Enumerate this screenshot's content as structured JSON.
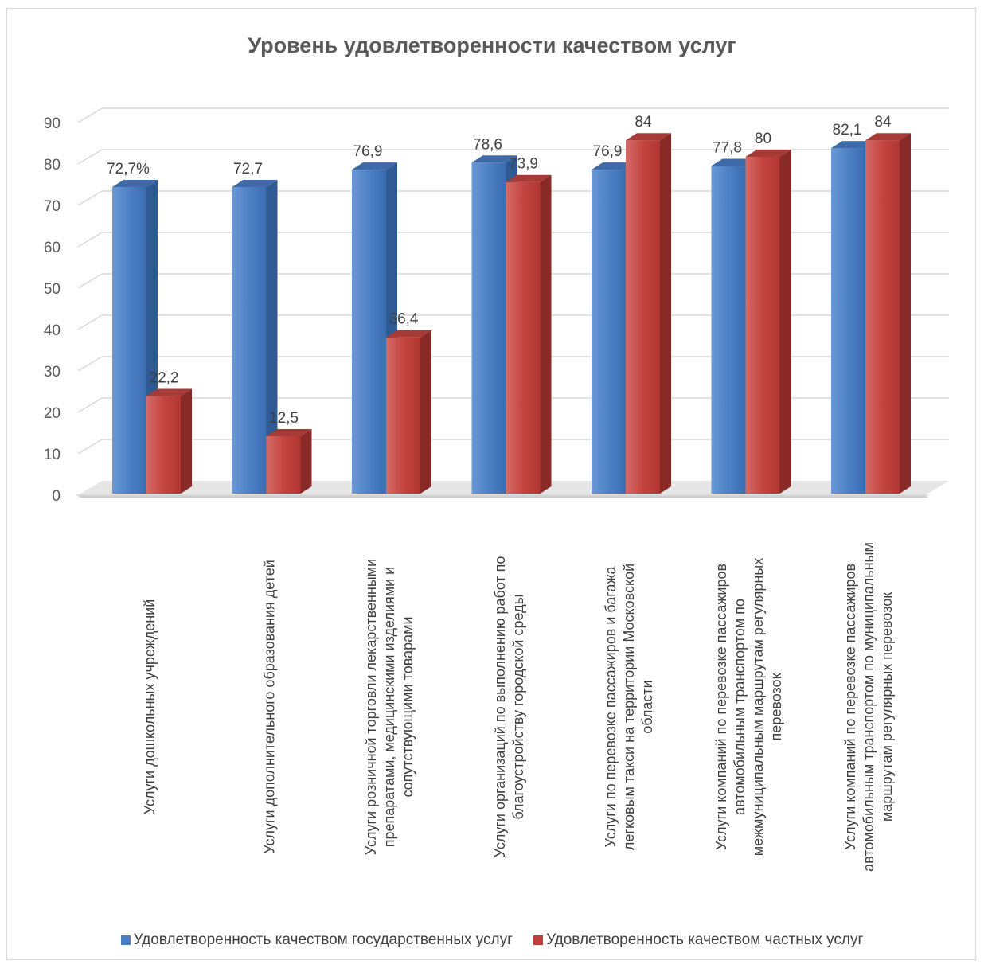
{
  "chart_data": {
    "type": "bar",
    "title": "Уровень удовлетворенности качеством услуг",
    "ylim": [
      0,
      90
    ],
    "yticks": [
      0,
      10,
      20,
      30,
      40,
      50,
      60,
      70,
      80,
      90
    ],
    "grid": true,
    "legend_position": "bottom",
    "categories": [
      "Услуги дошкольных учреждений",
      "Услуги дополнительного образования детей",
      "Услуги розничной торговли лекарственными препаратами, медицинскими изделиями и сопутствующими товарами",
      "Услуги организаций по выполнению работ по благоустройству городской среды",
      "Услуги по перевозке пассажиров и багажа легковым такси на территории Московской области",
      "Услуги компаний по перевозке пассажиров автомобильным транспортом по межмуниципальным маршрутам регулярных перевозок",
      "Услуги компаний по перевозке пассажиров автомобильным транспортом по муниципальным маршрутам регулярных перевозок"
    ],
    "category_lines": [
      [
        "Услуги дошкольных учреждений"
      ],
      [
        "Услуги дополнительного образования детей"
      ],
      [
        "Услуги розничной торговли лекарственными",
        "препаратами, медицинскими изделиями и",
        "сопутствующими товарами"
      ],
      [
        "Услуги организаций по выполнению работ по",
        "благоустройству городской среды"
      ],
      [
        "Услуги по перевозке пассажиров и багажа",
        "легковым такси на территории Московской",
        "области"
      ],
      [
        "Услуги компаний по перевозке пассажиров",
        "автомобильным транспортом по",
        "межмуниципальным маршрутам регулярных",
        "перевозок"
      ],
      [
        "Услуги компаний по перевозке пассажиров",
        "автомобильным транспортом по муниципальным",
        "маршрутам регулярных перевозок"
      ]
    ],
    "series": [
      {
        "name": "Удовлетворенность качеством государственных услуг",
        "color": "#4a7ec2",
        "values": [
          72.7,
          72.7,
          76.9,
          78.6,
          76.9,
          77.8,
          82.1
        ],
        "labels": [
          "72,7%",
          "72,7",
          "76,9",
          "78,6",
          "76,9",
          "77,8",
          "82,1"
        ]
      },
      {
        "name": "Удовлетворенность качеством частных услуг",
        "color": "#c0403c",
        "values": [
          22.2,
          12.5,
          36.4,
          73.9,
          84,
          80,
          84
        ],
        "labels": [
          "22,2",
          "12,5",
          "36,4",
          "73,9",
          "84",
          "80",
          "84"
        ]
      }
    ]
  }
}
